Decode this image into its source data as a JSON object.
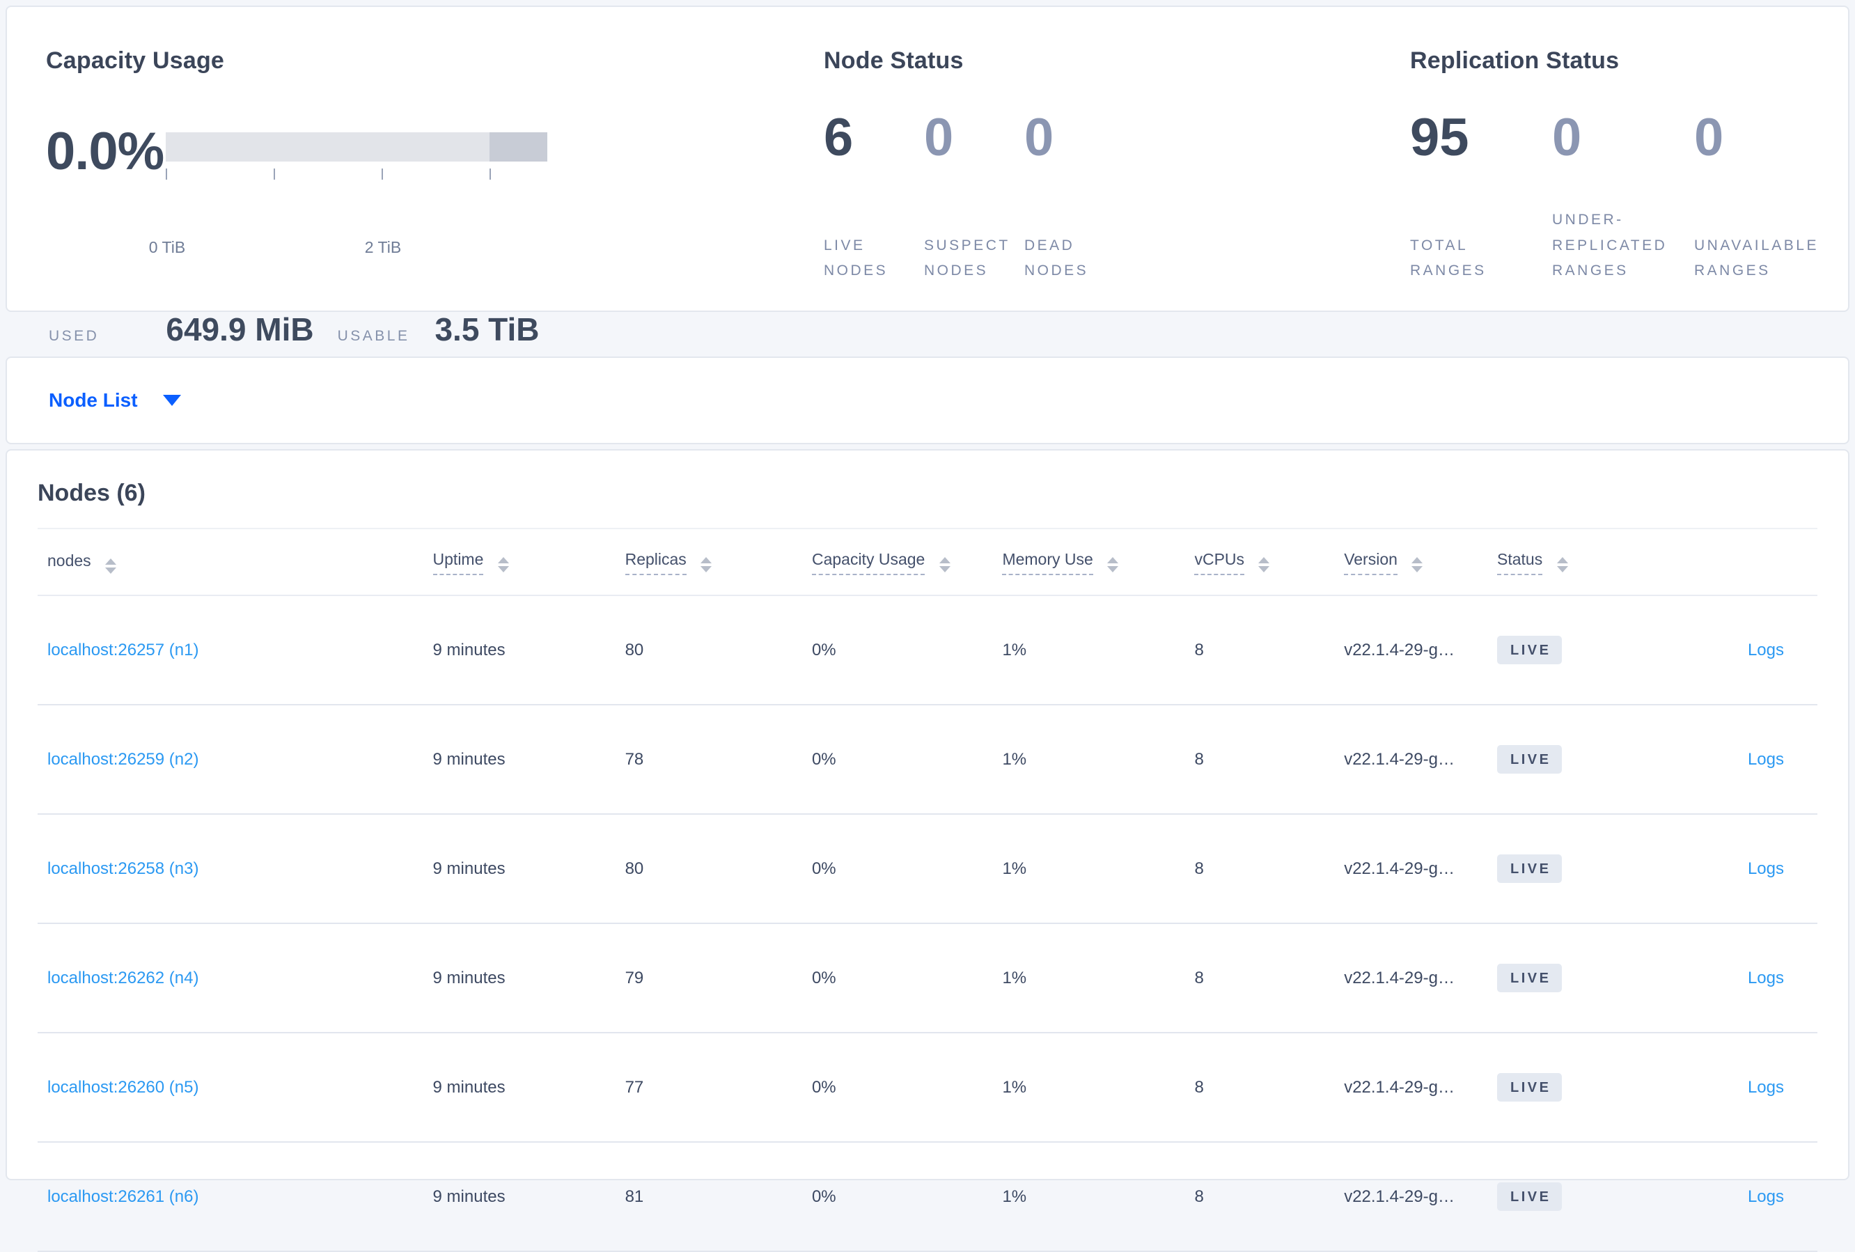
{
  "colors": {
    "page_bg": "#f4f6fa",
    "navy_text": "#3e4a5e",
    "muted_stat": "#8b96b2",
    "stat_label": "#7d89a6",
    "accent_blue": "#0b5fff",
    "link_blue": "#2b99f2",
    "badge_bg": "#e4e9f1",
    "bar_light": "#e2e4e9",
    "bar_dark": "#c8ccd6"
  },
  "summary": {
    "capacity": {
      "title": "Capacity Usage",
      "percent": "0.0%",
      "tick_labels": [
        "0 TiB",
        "2 TiB"
      ],
      "used_label": "USED",
      "used_value": "649.9 MiB",
      "usable_label": "USABLE",
      "usable_value": "3.5 TiB"
    },
    "node_status": {
      "title": "Node Status",
      "stats": [
        {
          "value": "6",
          "label": "LIVE NODES"
        },
        {
          "value": "0",
          "label": "SUSPECT NODES"
        },
        {
          "value": "0",
          "label": "DEAD NODES"
        }
      ]
    },
    "replication": {
      "title": "Replication Status",
      "stats": [
        {
          "value": "95",
          "label": "TOTAL RANGES"
        },
        {
          "value": "0",
          "label": "UNDER-REPLICATED RANGES"
        },
        {
          "value": "0",
          "label": "UNAVAILABLE RANGES"
        }
      ]
    }
  },
  "view_selector": {
    "label": "Node List"
  },
  "nodes_table": {
    "title": "Nodes (6)",
    "columns": [
      {
        "label": "nodes"
      },
      {
        "label": "Uptime"
      },
      {
        "label": "Replicas"
      },
      {
        "label": "Capacity Usage"
      },
      {
        "label": "Memory Use"
      },
      {
        "label": "vCPUs"
      },
      {
        "label": "Version"
      },
      {
        "label": "Status"
      },
      {
        "label": ""
      }
    ],
    "rows": [
      {
        "node": "localhost:26257 (n1)",
        "uptime": "9 minutes",
        "replicas": "80",
        "capacity": "0%",
        "memory": "1%",
        "vcpus": "8",
        "version": "v22.1.4-29-g…",
        "status": "LIVE",
        "logs": "Logs"
      },
      {
        "node": "localhost:26259 (n2)",
        "uptime": "9 minutes",
        "replicas": "78",
        "capacity": "0%",
        "memory": "1%",
        "vcpus": "8",
        "version": "v22.1.4-29-g…",
        "status": "LIVE",
        "logs": "Logs"
      },
      {
        "node": "localhost:26258 (n3)",
        "uptime": "9 minutes",
        "replicas": "80",
        "capacity": "0%",
        "memory": "1%",
        "vcpus": "8",
        "version": "v22.1.4-29-g…",
        "status": "LIVE",
        "logs": "Logs"
      },
      {
        "node": "localhost:26262 (n4)",
        "uptime": "9 minutes",
        "replicas": "79",
        "capacity": "0%",
        "memory": "1%",
        "vcpus": "8",
        "version": "v22.1.4-29-g…",
        "status": "LIVE",
        "logs": "Logs"
      },
      {
        "node": "localhost:26260 (n5)",
        "uptime": "9 minutes",
        "replicas": "77",
        "capacity": "0%",
        "memory": "1%",
        "vcpus": "8",
        "version": "v22.1.4-29-g…",
        "status": "LIVE",
        "logs": "Logs"
      },
      {
        "node": "localhost:26261 (n6)",
        "uptime": "9 minutes",
        "replicas": "81",
        "capacity": "0%",
        "memory": "1%",
        "vcpus": "8",
        "version": "v22.1.4-29-g…",
        "status": "LIVE",
        "logs": "Logs"
      }
    ]
  }
}
